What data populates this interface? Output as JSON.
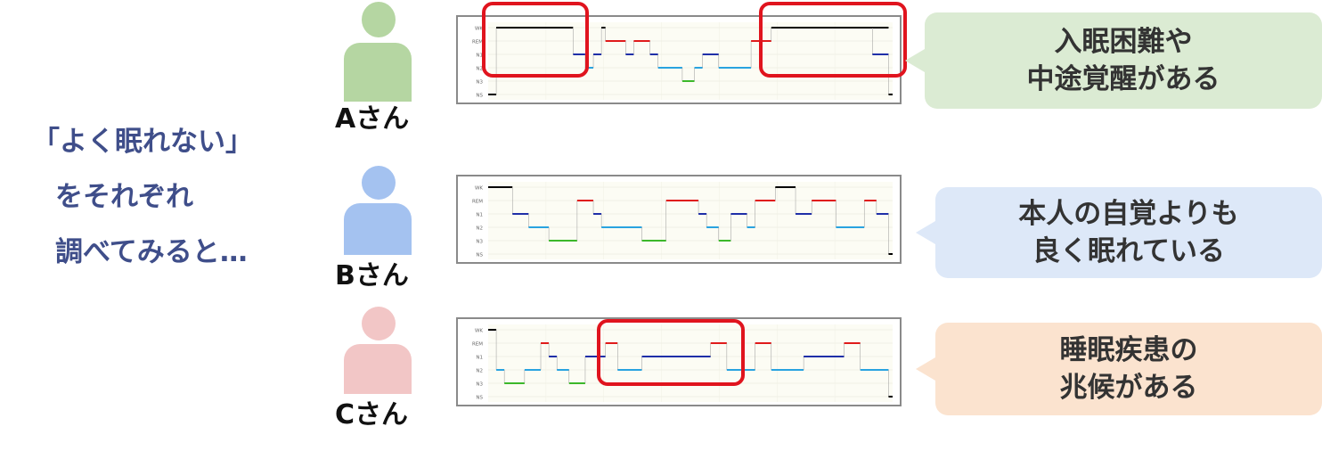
{
  "intro": {
    "line1": "「よく眠れない」",
    "line2": "をそれぞれ",
    "line3": "調べてみると…"
  },
  "stage_labels": [
    "WK",
    "REM",
    "N1",
    "N2",
    "N3",
    "NS"
  ],
  "colors": {
    "wk": "#000000",
    "rem": "#e01b1b",
    "n1": "#1f2fa8",
    "n2": "#29a3e0",
    "n3": "#3cb82a",
    "highlight": "#e0141e",
    "intro_text": "#3f4e8a"
  },
  "persons": [
    {
      "name": "Aさん",
      "avatar_color": "#b5d6a2",
      "bubble_line1": "入眠困難や",
      "bubble_line2": "中途覚醒がある",
      "bubble_color": "#dbebd3"
    },
    {
      "name": "Bさん",
      "avatar_color": "#a4c2f0",
      "bubble_line1": "本人の自覚よりも",
      "bubble_line2": "良く眠れている",
      "bubble_color": "#dde8f8"
    },
    {
      "name": "Cさん",
      "avatar_color": "#f2c6c6",
      "bubble_line1": "睡眠疾患の",
      "bubble_line2": "兆候がある",
      "bubble_color": "#fbe3cf"
    }
  ],
  "chart_data": [
    {
      "type": "line",
      "title": "Aさん",
      "y_categories": [
        "WK",
        "REM",
        "N1",
        "N2",
        "N3",
        "NS"
      ],
      "x_range": [
        0,
        1
      ],
      "segments": [
        {
          "stage": "NS",
          "x": [
            0.0,
            0.02
          ]
        },
        {
          "stage": "WK",
          "x": [
            0.02,
            0.21
          ]
        },
        {
          "stage": "N1",
          "x": [
            0.21,
            0.24
          ]
        },
        {
          "stage": "N2",
          "x": [
            0.24,
            0.26
          ]
        },
        {
          "stage": "N1",
          "x": [
            0.26,
            0.28
          ]
        },
        {
          "stage": "WK",
          "x": [
            0.28,
            0.29
          ]
        },
        {
          "stage": "REM",
          "x": [
            0.29,
            0.34
          ]
        },
        {
          "stage": "N1",
          "x": [
            0.34,
            0.36
          ]
        },
        {
          "stage": "REM",
          "x": [
            0.36,
            0.4
          ]
        },
        {
          "stage": "N1",
          "x": [
            0.4,
            0.42
          ]
        },
        {
          "stage": "N2",
          "x": [
            0.42,
            0.48
          ]
        },
        {
          "stage": "N3",
          "x": [
            0.48,
            0.51
          ]
        },
        {
          "stage": "N2",
          "x": [
            0.51,
            0.53
          ]
        },
        {
          "stage": "N1",
          "x": [
            0.53,
            0.57
          ]
        },
        {
          "stage": "N2",
          "x": [
            0.57,
            0.65
          ]
        },
        {
          "stage": "REM",
          "x": [
            0.65,
            0.7
          ]
        },
        {
          "stage": "WK",
          "x": [
            0.7,
            0.99
          ]
        },
        {
          "stage": "N1",
          "x": [
            0.95,
            0.99
          ]
        },
        {
          "stage": "NS",
          "x": [
            0.99,
            1.0
          ]
        }
      ],
      "highlights": [
        [
          0.0,
          0.23
        ],
        [
          0.68,
          1.0
        ]
      ]
    },
    {
      "type": "line",
      "title": "Bさん",
      "y_categories": [
        "WK",
        "REM",
        "N1",
        "N2",
        "N3",
        "NS"
      ],
      "x_range": [
        0,
        1
      ],
      "segments": [
        {
          "stage": "WK",
          "x": [
            0.0,
            0.06
          ]
        },
        {
          "stage": "N1",
          "x": [
            0.06,
            0.1
          ]
        },
        {
          "stage": "N2",
          "x": [
            0.1,
            0.15
          ]
        },
        {
          "stage": "N3",
          "x": [
            0.15,
            0.22
          ]
        },
        {
          "stage": "REM",
          "x": [
            0.22,
            0.26
          ]
        },
        {
          "stage": "N1",
          "x": [
            0.26,
            0.28
          ]
        },
        {
          "stage": "N2",
          "x": [
            0.28,
            0.38
          ]
        },
        {
          "stage": "N3",
          "x": [
            0.38,
            0.44
          ]
        },
        {
          "stage": "REM",
          "x": [
            0.44,
            0.52
          ]
        },
        {
          "stage": "N1",
          "x": [
            0.52,
            0.54
          ]
        },
        {
          "stage": "N2",
          "x": [
            0.54,
            0.57
          ]
        },
        {
          "stage": "N3",
          "x": [
            0.57,
            0.6
          ]
        },
        {
          "stage": "N1",
          "x": [
            0.6,
            0.64
          ]
        },
        {
          "stage": "N2",
          "x": [
            0.64,
            0.66
          ]
        },
        {
          "stage": "REM",
          "x": [
            0.66,
            0.71
          ]
        },
        {
          "stage": "WK",
          "x": [
            0.71,
            0.76
          ]
        },
        {
          "stage": "N1",
          "x": [
            0.76,
            0.8
          ]
        },
        {
          "stage": "REM",
          "x": [
            0.8,
            0.86
          ]
        },
        {
          "stage": "N2",
          "x": [
            0.86,
            0.93
          ]
        },
        {
          "stage": "REM",
          "x": [
            0.93,
            0.96
          ]
        },
        {
          "stage": "N1",
          "x": [
            0.96,
            0.99
          ]
        },
        {
          "stage": "NS",
          "x": [
            0.99,
            1.0
          ]
        }
      ],
      "highlights": []
    },
    {
      "type": "line",
      "title": "Cさん",
      "y_categories": [
        "WK",
        "REM",
        "N1",
        "N2",
        "N3",
        "NS"
      ],
      "x_range": [
        0,
        1
      ],
      "segments": [
        {
          "stage": "WK",
          "x": [
            0.0,
            0.02
          ]
        },
        {
          "stage": "N2",
          "x": [
            0.02,
            0.04
          ]
        },
        {
          "stage": "N3",
          "x": [
            0.04,
            0.09
          ]
        },
        {
          "stage": "N2",
          "x": [
            0.09,
            0.13
          ]
        },
        {
          "stage": "REM",
          "x": [
            0.13,
            0.15
          ]
        },
        {
          "stage": "N1",
          "x": [
            0.15,
            0.17
          ]
        },
        {
          "stage": "N2",
          "x": [
            0.17,
            0.2
          ]
        },
        {
          "stage": "N3",
          "x": [
            0.2,
            0.24
          ]
        },
        {
          "stage": "N1",
          "x": [
            0.24,
            0.29
          ]
        },
        {
          "stage": "REM",
          "x": [
            0.29,
            0.32
          ]
        },
        {
          "stage": "N2",
          "x": [
            0.32,
            0.38
          ]
        },
        {
          "stage": "N1",
          "x": [
            0.38,
            0.55
          ]
        },
        {
          "stage": "REM",
          "x": [
            0.55,
            0.59
          ]
        },
        {
          "stage": "N2",
          "x": [
            0.59,
            0.66
          ]
        },
        {
          "stage": "REM",
          "x": [
            0.66,
            0.7
          ]
        },
        {
          "stage": "N2",
          "x": [
            0.7,
            0.78
          ]
        },
        {
          "stage": "N1",
          "x": [
            0.78,
            0.88
          ]
        },
        {
          "stage": "REM",
          "x": [
            0.88,
            0.92
          ]
        },
        {
          "stage": "N2",
          "x": [
            0.92,
            0.99
          ]
        },
        {
          "stage": "NS",
          "x": [
            0.99,
            1.0
          ]
        }
      ],
      "highlights": [
        [
          0.32,
          0.66
        ]
      ]
    }
  ]
}
